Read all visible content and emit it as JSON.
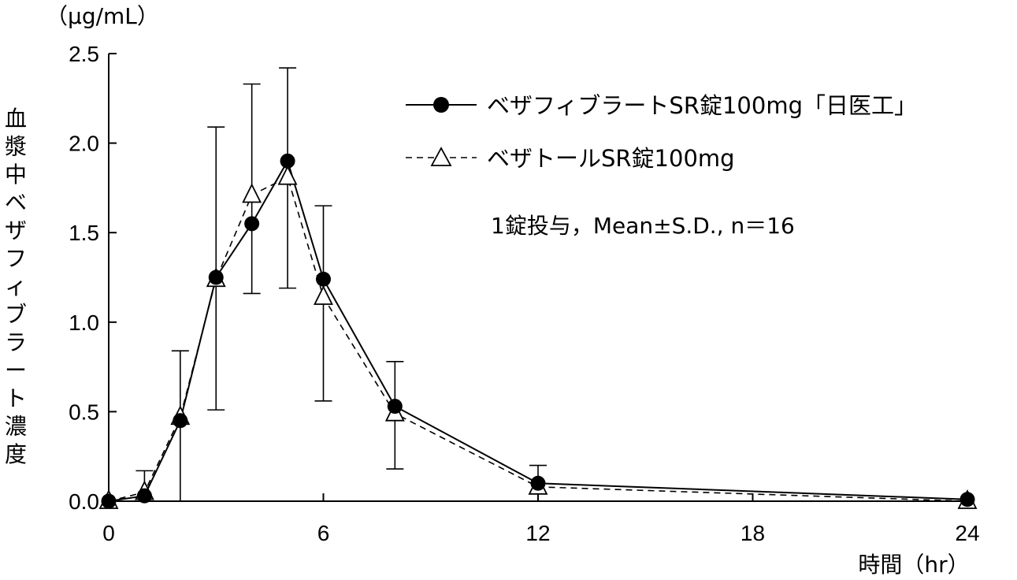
{
  "chart_data": {
    "type": "line",
    "title": "",
    "unit_label": "（μg/mL）",
    "ylabel": "血漿中ベザフィブラート濃度",
    "xlabel": "時間（hr）",
    "xlim": [
      0,
      24
    ],
    "ylim": [
      0,
      2.5
    ],
    "x_ticks": [
      0,
      6,
      12,
      18,
      24
    ],
    "x_tick_labels": [
      "0",
      "6",
      "12",
      "18",
      "24"
    ],
    "y_ticks": [
      0,
      0.5,
      1.0,
      1.5,
      2.0,
      2.5
    ],
    "y_tick_labels": [
      "0.0",
      "0.5",
      "1.0",
      "1.5",
      "2.0",
      "2.5"
    ],
    "grid": false,
    "legend_position": "top-right",
    "note": "1錠投与，Mean±S.D., n＝16",
    "series": [
      {
        "name": "ベザフィブラートSR錠100mg「日医工」",
        "marker": "filled-circle",
        "line": "solid",
        "color": "#000000",
        "points": [
          {
            "x": 0,
            "y": 0.0
          },
          {
            "x": 1,
            "y": 0.03
          },
          {
            "x": 2,
            "y": 0.45
          },
          {
            "x": 3,
            "y": 1.25
          },
          {
            "x": 4,
            "y": 1.55
          },
          {
            "x": 5,
            "y": 1.9
          },
          {
            "x": 6,
            "y": 1.24
          },
          {
            "x": 8,
            "y": 0.53
          },
          {
            "x": 12,
            "y": 0.1
          },
          {
            "x": 24,
            "y": 0.01
          }
        ]
      },
      {
        "name": "ベザトールSR錠100mg",
        "marker": "open-triangle",
        "line": "dashed",
        "color": "#000000",
        "points": [
          {
            "x": 0,
            "y": 0.0
          },
          {
            "x": 1,
            "y": 0.05
          },
          {
            "x": 2,
            "y": 0.47
          },
          {
            "x": 3,
            "y": 1.24
          },
          {
            "x": 4,
            "y": 1.71
          },
          {
            "x": 5,
            "y": 1.81
          },
          {
            "x": 6,
            "y": 1.14
          },
          {
            "x": 8,
            "y": 0.49
          },
          {
            "x": 12,
            "y": 0.08
          },
          {
            "x": 24,
            "y": 0.0
          }
        ]
      }
    ],
    "error_bars": [
      {
        "x": 1,
        "low": 0.0,
        "high": 0.17
      },
      {
        "x": 2,
        "low": 0.0,
        "high": 0.84
      },
      {
        "x": 3,
        "low": 0.51,
        "high": 2.09
      },
      {
        "x": 4,
        "low": 1.16,
        "high": 2.33
      },
      {
        "x": 5,
        "low": 1.19,
        "high": 2.42
      },
      {
        "x": 6,
        "low": 0.56,
        "high": 1.65
      },
      {
        "x": 8,
        "low": 0.18,
        "high": 0.78
      },
      {
        "x": 12,
        "low": 0.0,
        "high": 0.2
      }
    ]
  }
}
